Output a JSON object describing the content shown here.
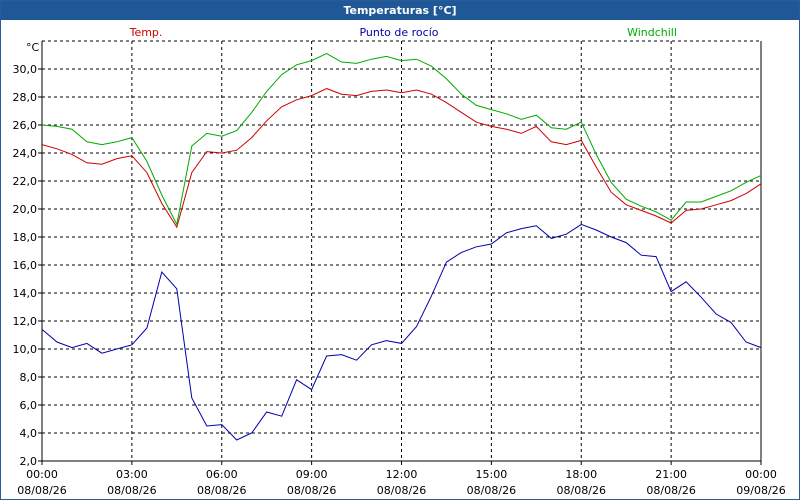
{
  "window": {
    "title": "Temperaturas [°C]"
  },
  "chart_data": {
    "type": "line",
    "ylabel": "°C",
    "ylim": [
      2,
      32
    ],
    "yticks": [
      "2,0",
      "4,0",
      "6,0",
      "8,0",
      "10,0",
      "12,0",
      "14,0",
      "16,0",
      "18,0",
      "20,0",
      "22,0",
      "24,0",
      "26,0",
      "28,0",
      "30,0"
    ],
    "xlim": [
      0,
      24
    ],
    "xticks": [
      {
        "time": "00:00",
        "date": "08/08/26"
      },
      {
        "time": "03:00",
        "date": "08/08/26"
      },
      {
        "time": "06:00",
        "date": "08/08/26"
      },
      {
        "time": "09:00",
        "date": "08/08/26"
      },
      {
        "time": "12:00",
        "date": "08/08/26"
      },
      {
        "time": "15:00",
        "date": "08/08/26"
      },
      {
        "time": "18:00",
        "date": "08/08/26"
      },
      {
        "time": "21:00",
        "date": "08/08/26"
      },
      {
        "time": "00:00",
        "date": "09/08/26"
      }
    ],
    "grid": true,
    "series": [
      {
        "name": "Temp.",
        "color": "#cc0000",
        "x": [
          0,
          0.5,
          1,
          1.5,
          2,
          2.5,
          3,
          3.5,
          4,
          4.5,
          5,
          5.5,
          6,
          6.5,
          7,
          7.5,
          8,
          8.5,
          9,
          9.5,
          10,
          10.5,
          11,
          11.5,
          12,
          12.5,
          13,
          13.5,
          14,
          14.5,
          15,
          15.5,
          16,
          16.5,
          17,
          17.5,
          18,
          18.5,
          19,
          19.5,
          20,
          20.5,
          21,
          21.5,
          22,
          22.5,
          23,
          23.5,
          24
        ],
        "values": [
          24.6,
          24.3,
          23.9,
          23.3,
          23.2,
          23.6,
          23.8,
          22.6,
          20.4,
          18.7,
          22.6,
          24.1,
          24.0,
          24.2,
          25.1,
          26.3,
          27.3,
          27.8,
          28.1,
          28.6,
          28.2,
          28.1,
          28.4,
          28.5,
          28.3,
          28.5,
          28.2,
          27.6,
          26.9,
          26.2,
          25.9,
          25.7,
          25.4,
          25.9,
          24.8,
          24.6,
          24.9,
          23.0,
          21.2,
          20.3,
          19.9,
          19.5,
          19.0,
          19.9,
          20.0,
          20.3,
          20.6,
          21.1,
          21.8
        ]
      },
      {
        "name": "Punto de rocío",
        "color": "#0000aa",
        "x": [
          0,
          0.5,
          1,
          1.5,
          2,
          2.5,
          3,
          3.5,
          4,
          4.5,
          5,
          5.5,
          6,
          6.5,
          7,
          7.5,
          8,
          8.5,
          9,
          9.5,
          10,
          10.5,
          11,
          11.5,
          12,
          12.5,
          13,
          13.5,
          14,
          14.5,
          15,
          15.5,
          16,
          16.5,
          17,
          17.5,
          18,
          18.5,
          19,
          19.5,
          20,
          20.5,
          21,
          21.5,
          22,
          22.5,
          23,
          23.5,
          24
        ],
        "values": [
          11.4,
          10.5,
          10.1,
          10.4,
          9.7,
          10.0,
          10.3,
          11.5,
          15.5,
          14.3,
          6.5,
          4.5,
          4.6,
          3.5,
          4.0,
          5.5,
          5.2,
          7.8,
          7.1,
          9.5,
          9.6,
          9.2,
          10.3,
          10.6,
          10.4,
          11.6,
          13.8,
          16.2,
          16.9,
          17.3,
          17.5,
          18.3,
          18.6,
          18.8,
          17.9,
          18.2,
          18.9,
          18.5,
          18.0,
          17.6,
          16.7,
          16.6,
          14.1,
          14.8,
          13.7,
          12.5,
          11.9,
          10.5,
          10.1
        ]
      },
      {
        "name": "Windchill",
        "color": "#00aa00",
        "x": [
          0,
          0.5,
          1,
          1.5,
          2,
          2.5,
          3,
          3.5,
          4,
          4.5,
          5,
          5.5,
          6,
          6.5,
          7,
          7.5,
          8,
          8.5,
          9,
          9.5,
          10,
          10.5,
          11,
          11.5,
          12,
          12.5,
          13,
          13.5,
          14,
          14.5,
          15,
          15.5,
          16,
          16.5,
          17,
          17.5,
          18,
          18.5,
          19,
          19.5,
          20,
          20.5,
          21,
          21.5,
          22,
          22.5,
          23,
          23.5,
          24
        ],
        "values": [
          26.0,
          25.9,
          25.7,
          24.8,
          24.6,
          24.8,
          25.1,
          23.4,
          21.0,
          18.9,
          24.5,
          25.4,
          25.2,
          25.6,
          26.9,
          28.4,
          29.6,
          30.3,
          30.6,
          31.1,
          30.5,
          30.4,
          30.7,
          30.9,
          30.6,
          30.7,
          30.2,
          29.3,
          28.2,
          27.4,
          27.1,
          26.8,
          26.4,
          26.7,
          25.8,
          25.7,
          26.2,
          23.9,
          21.9,
          20.7,
          20.2,
          19.8,
          19.2,
          20.5,
          20.5,
          20.9,
          21.3,
          21.9,
          22.4
        ]
      }
    ]
  }
}
